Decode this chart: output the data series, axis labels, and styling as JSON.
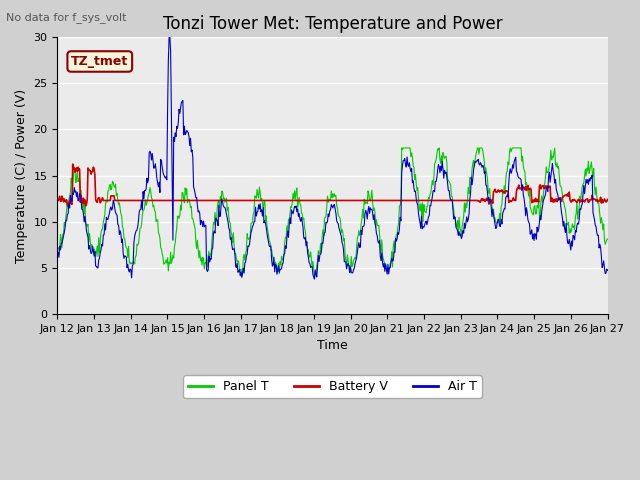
{
  "title": "Tonzi Tower Met: Temperature and Power",
  "subtitle": "No data for f_sys_volt",
  "xlabel": "Time",
  "ylabel": "Temperature (C) / Power (V)",
  "ylim": [
    0,
    30
  ],
  "yticks": [
    0,
    5,
    10,
    15,
    20,
    25,
    30
  ],
  "x_labels": [
    "Jan 12",
    "Jan 13",
    "Jan 14",
    "Jan 15",
    "Jan 16",
    "Jan 17",
    "Jan 18",
    "Jan 19",
    "Jan 20",
    "Jan 21",
    "Jan 22",
    "Jan 23",
    "Jan 24",
    "Jan 25",
    "Jan 26",
    "Jan 27"
  ],
  "n_days": 15,
  "legend_labels": [
    "Panel T",
    "Battery V",
    "Air T"
  ],
  "legend_colors": [
    "#00cc00",
    "#cc0000",
    "#0000cc"
  ],
  "panel_color": "#00cc00",
  "battery_color": "#cc0000",
  "air_color": "#0000cc",
  "annotation_text": "TZ_tmet",
  "annotation_color": "#8b0000",
  "annotation_bg": "#f5f5dc",
  "plot_bg": "#ebebeb",
  "grid_color": "#ffffff",
  "title_fontsize": 12,
  "label_fontsize": 9,
  "tick_fontsize": 8
}
